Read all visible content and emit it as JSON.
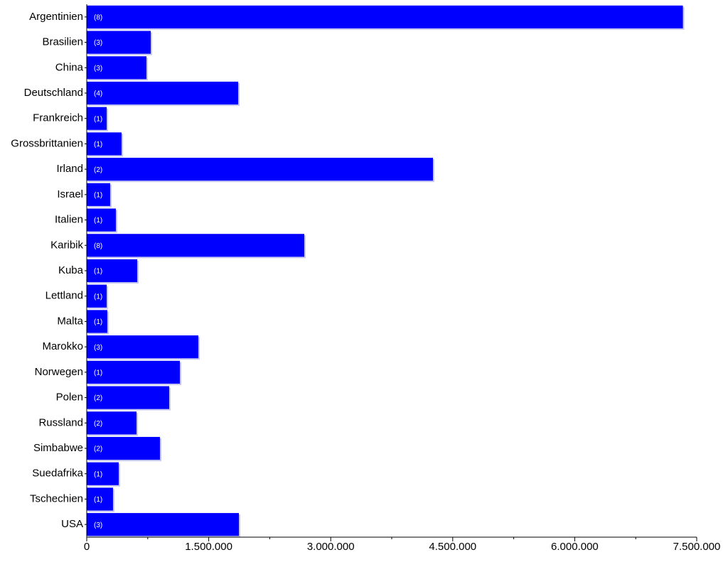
{
  "chart_data": {
    "type": "bar",
    "orientation": "horizontal",
    "categories": [
      "Argentinien",
      "Brasilien",
      "China",
      "Deutschland",
      "Frankreich",
      "Grossbrittanien",
      "Irland",
      "Israel",
      "Italien",
      "Karibik",
      "Kuba",
      "Lettland",
      "Malta",
      "Marokko",
      "Norwegen",
      "Polen",
      "Russland",
      "Simbabwe",
      "Suedafrika",
      "Tschechien",
      "USA"
    ],
    "values": [
      7330000,
      787000,
      734000,
      1862000,
      245000,
      428000,
      4257000,
      288000,
      358000,
      2675000,
      621000,
      245000,
      253000,
      1372000,
      1145000,
      1014000,
      612000,
      900000,
      393000,
      323000,
      1871000
    ],
    "count_labels": [
      "(8)",
      "(3)",
      "(3)",
      "(4)",
      "(1)",
      "(1)",
      "(2)",
      "(1)",
      "(1)",
      "(8)",
      "(1)",
      "(1)",
      "(1)",
      "(3)",
      "(1)",
      "(2)",
      "(2)",
      "(2)",
      "(1)",
      "(1)",
      "(3)"
    ],
    "color": "#0000ff",
    "xlim": [
      0,
      7500000
    ],
    "xticks": [
      0,
      {
        "value": 1500000,
        "label": "1.500.000"
      },
      {
        "value": 3000000,
        "label": "3.000.000"
      },
      {
        "value": 4500000,
        "label": "4.500.000"
      },
      {
        "value": 6000000,
        "label": "6.000.000"
      },
      {
        "value": 7500000,
        "label": "7.500.000"
      }
    ],
    "minor_xticks": [
      750000,
      2250000,
      3750000,
      5250000,
      6750000
    ]
  }
}
